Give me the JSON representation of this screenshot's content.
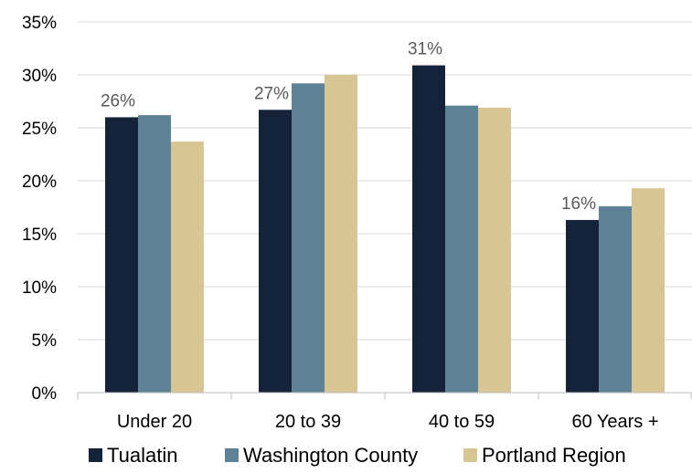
{
  "chart_data": {
    "type": "bar",
    "categories": [
      "Under 20",
      "20 to 39",
      "40 to 59",
      "60 Years +"
    ],
    "series": [
      {
        "name": "Tualatin",
        "color": "#14233a",
        "values": [
          26,
          26.7,
          30.9,
          16.3
        ]
      },
      {
        "name": "Washington County",
        "color": "#5f8396",
        "values": [
          26.2,
          29.2,
          27.1,
          17.6
        ]
      },
      {
        "name": "Portland Region",
        "color": "#d7c593",
        "values": [
          23.7,
          30,
          26.9,
          19.3
        ]
      }
    ],
    "data_labels": [
      {
        "series": 0,
        "category": 0,
        "text": "26%"
      },
      {
        "series": 0,
        "category": 1,
        "text": "27%"
      },
      {
        "series": 0,
        "category": 2,
        "text": "31%"
      },
      {
        "series": 0,
        "category": 3,
        "text": "16%"
      }
    ],
    "y_ticks": [
      "0%",
      "5%",
      "10%",
      "15%",
      "20%",
      "25%",
      "30%",
      "35%"
    ],
    "ylim": [
      0,
      35
    ],
    "title": "",
    "xlabel": "",
    "ylabel": "",
    "grid": true,
    "legend_position": "bottom"
  }
}
